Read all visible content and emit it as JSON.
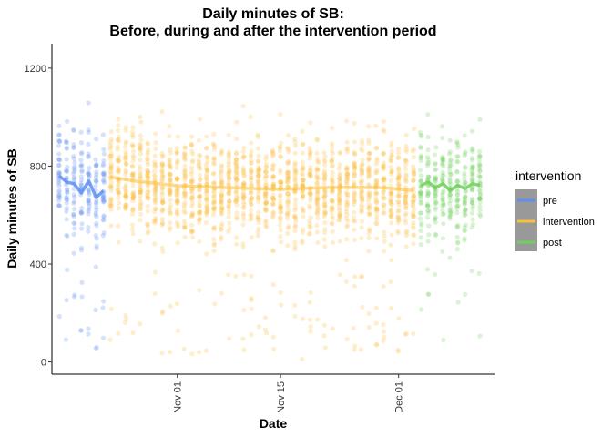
{
  "chart_data": {
    "type": "scatter",
    "title_line1": "Daily minutes of SB:",
    "title_line2": "Before, during and after the intervention period",
    "xlabel": "Date",
    "ylabel": "Daily minutes of SB",
    "xlim": [
      "2023-10-15",
      "2023-12-14"
    ],
    "ylim": [
      -50,
      1300
    ],
    "x_ticks": [
      {
        "date": "2023-11-01",
        "label": "Nov 01"
      },
      {
        "date": "2023-11-15",
        "label": "Nov 15"
      },
      {
        "date": "2023-12-01",
        "label": "Dec 01"
      }
    ],
    "y_ticks": [
      0,
      400,
      800,
      1200
    ],
    "grid": false,
    "legend": {
      "title": "intervention",
      "position": "right",
      "items": [
        {
          "label": "pre",
          "color": "#5f8fef"
        },
        {
          "label": "intervention",
          "color": "#fcbf3c"
        },
        {
          "label": "post",
          "color": "#6fcf5c"
        }
      ]
    },
    "series": [
      {
        "name": "pre",
        "color": "#5f8fef",
        "date_range": [
          "2023-10-16",
          "2023-10-22"
        ],
        "smooth": [
          {
            "date": "2023-10-16",
            "y": 760
          },
          {
            "date": "2023-10-17",
            "y": 735
          },
          {
            "date": "2023-10-18",
            "y": 728
          },
          {
            "date": "2023-10-19",
            "y": 690
          },
          {
            "date": "2023-10-20",
            "y": 740
          },
          {
            "date": "2023-10-21",
            "y": 672
          },
          {
            "date": "2023-10-22",
            "y": 700
          }
        ]
      },
      {
        "name": "intervention",
        "color": "#fcbf3c",
        "date_range": [
          "2023-10-23",
          "2023-12-03"
        ],
        "smooth": [
          {
            "date": "2023-10-23",
            "y": 755
          },
          {
            "date": "2023-10-26",
            "y": 740
          },
          {
            "date": "2023-11-01",
            "y": 720
          },
          {
            "date": "2023-11-08",
            "y": 712
          },
          {
            "date": "2023-11-15",
            "y": 705
          },
          {
            "date": "2023-11-22",
            "y": 714
          },
          {
            "date": "2023-11-29",
            "y": 712
          },
          {
            "date": "2023-12-03",
            "y": 700
          }
        ]
      },
      {
        "name": "post",
        "color": "#6fcf5c",
        "date_range": [
          "2023-12-04",
          "2023-12-12"
        ],
        "smooth": [
          {
            "date": "2023-12-04",
            "y": 720
          },
          {
            "date": "2023-12-05",
            "y": 735
          },
          {
            "date": "2023-12-06",
            "y": 712
          },
          {
            "date": "2023-12-07",
            "y": 728
          },
          {
            "date": "2023-12-08",
            "y": 700
          },
          {
            "date": "2023-12-09",
            "y": 722
          },
          {
            "date": "2023-12-10",
            "y": 708
          },
          {
            "date": "2023-12-11",
            "y": 728
          },
          {
            "date": "2023-12-12",
            "y": 722
          }
        ]
      }
    ]
  }
}
